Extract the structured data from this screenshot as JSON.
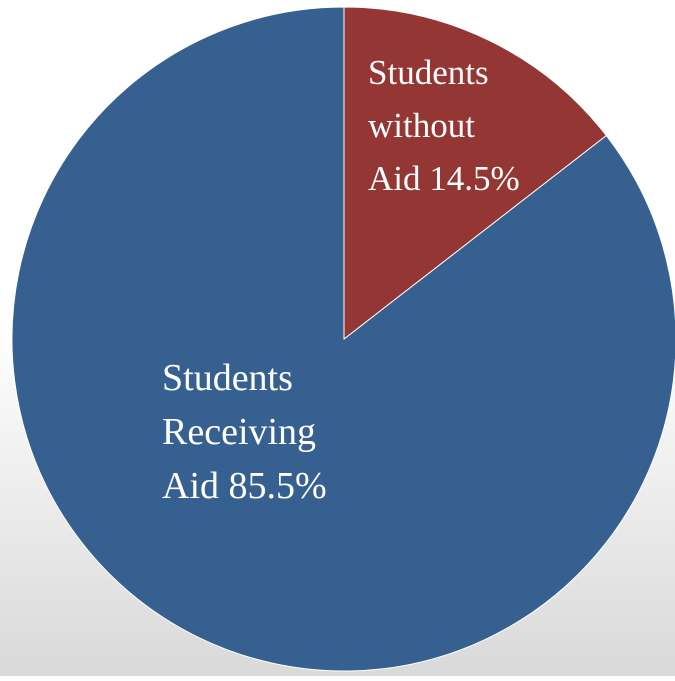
{
  "chart_data": {
    "type": "pie",
    "title": "",
    "slices": [
      {
        "category_lines": [
          "Students",
          "Receiving"
        ],
        "value_line": "Aid 85.5%",
        "value": 85.5,
        "color": "#36608F"
      },
      {
        "category_lines": [
          "Students",
          "without"
        ],
        "value_line": "Aid 14.5%",
        "value": 14.5,
        "color": "#943634"
      }
    ],
    "start_angle_deg": 0,
    "direction": "clockwise-from-top-for-second-slice",
    "labels_inside": true,
    "legend": "none"
  }
}
